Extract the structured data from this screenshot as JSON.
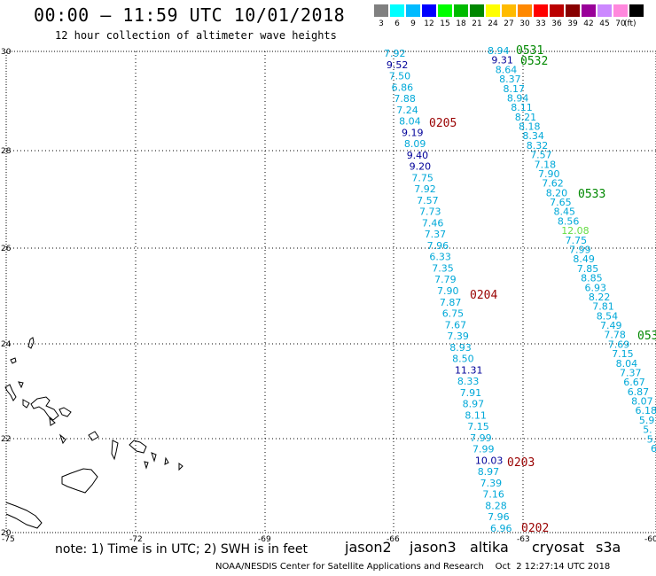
{
  "header": {
    "title": "00:00 – 11:59 UTC 10/01/2018",
    "subtitle": "12 hour collection of altimeter wave heights"
  },
  "legend": {
    "unit": "(ft)",
    "items": [
      {
        "label": "3",
        "color": "#808080"
      },
      {
        "label": "6",
        "color": "#00ffff"
      },
      {
        "label": "9",
        "color": "#00bbff"
      },
      {
        "label": "12",
        "color": "#0000ff"
      },
      {
        "label": "15",
        "color": "#00ff00"
      },
      {
        "label": "18",
        "color": "#00bb00"
      },
      {
        "label": "21",
        "color": "#008800"
      },
      {
        "label": "24",
        "color": "#ffff00"
      },
      {
        "label": "27",
        "color": "#ffbb00"
      },
      {
        "label": "30",
        "color": "#ff8800"
      },
      {
        "label": "33",
        "color": "#ff0000"
      },
      {
        "label": "36",
        "color": "#bb0000"
      },
      {
        "label": "39",
        "color": "#880000"
      },
      {
        "label": "42",
        "color": "#990099"
      },
      {
        "label": "45",
        "color": "#cc88ff"
      },
      {
        "label": "70",
        "color": "#ff88dd"
      },
      {
        "label": "",
        "color": "#000000"
      }
    ]
  },
  "axes": {
    "lon_ticks": [
      "-75",
      "-72",
      "-69",
      "-66",
      "-63",
      "-60"
    ],
    "lat_ticks": [
      "30",
      "28",
      "26",
      "24",
      "22",
      "20"
    ]
  },
  "colors": {
    "cyan": "#00a8d8",
    "navy": "#000099",
    "green": "#008800",
    "red": "#990000",
    "lightgreen": "#66dd44"
  },
  "track_labels": {
    "t0531": "0531",
    "t0532": "0532",
    "t0533": "0533",
    "t053_partial": "053",
    "t0205": "0205",
    "t0204": "0204",
    "t0203": "0203",
    "t0202": "0202"
  },
  "track_a": [
    {
      "v": "7.92",
      "c": "cyan"
    },
    {
      "v": "9.52",
      "c": "navy"
    },
    {
      "v": "7.50",
      "c": "cyan"
    },
    {
      "v": "6.86",
      "c": "cyan"
    },
    {
      "v": "7.88",
      "c": "cyan"
    },
    {
      "v": "7.24",
      "c": "cyan"
    },
    {
      "v": "8.04",
      "c": "cyan"
    },
    {
      "v": "9.19",
      "c": "navy"
    },
    {
      "v": "8.09",
      "c": "cyan"
    },
    {
      "v": "9.40",
      "c": "navy"
    },
    {
      "v": "9.20",
      "c": "navy"
    },
    {
      "v": "7.75",
      "c": "cyan"
    },
    {
      "v": "7.92",
      "c": "cyan"
    },
    {
      "v": "7.57",
      "c": "cyan"
    },
    {
      "v": "7.73",
      "c": "cyan"
    },
    {
      "v": "7.46",
      "c": "cyan"
    },
    {
      "v": "7.37",
      "c": "cyan"
    },
    {
      "v": "7.96",
      "c": "cyan"
    },
    {
      "v": "6.33",
      "c": "cyan"
    },
    {
      "v": "7.35",
      "c": "cyan"
    },
    {
      "v": "7.79",
      "c": "cyan"
    },
    {
      "v": "7.90",
      "c": "cyan"
    },
    {
      "v": "7.87",
      "c": "cyan"
    },
    {
      "v": "6.75",
      "c": "cyan"
    },
    {
      "v": "7.67",
      "c": "cyan"
    },
    {
      "v": "7.39",
      "c": "cyan"
    },
    {
      "v": "8.93",
      "c": "cyan"
    },
    {
      "v": "8.50",
      "c": "cyan"
    },
    {
      "v": "11.31",
      "c": "navy"
    },
    {
      "v": "8.33",
      "c": "cyan"
    },
    {
      "v": "7.91",
      "c": "cyan"
    },
    {
      "v": "8.97",
      "c": "cyan"
    },
    {
      "v": "8.11",
      "c": "cyan"
    },
    {
      "v": "7.15",
      "c": "cyan"
    },
    {
      "v": "7.99",
      "c": "cyan"
    },
    {
      "v": "7.99",
      "c": "cyan"
    },
    {
      "v": "10.03",
      "c": "navy"
    },
    {
      "v": "8.97",
      "c": "cyan"
    },
    {
      "v": "7.39",
      "c": "cyan"
    },
    {
      "v": "7.16",
      "c": "cyan"
    },
    {
      "v": "8.28",
      "c": "cyan"
    },
    {
      "v": "7.96",
      "c": "cyan"
    },
    {
      "v": "6.96",
      "c": "cyan"
    }
  ],
  "track_b": [
    {
      "v": "8.94",
      "c": "cyan"
    },
    {
      "v": "9.31",
      "c": "navy"
    },
    {
      "v": "8.64",
      "c": "cyan"
    },
    {
      "v": "8.37",
      "c": "cyan"
    },
    {
      "v": "8.17",
      "c": "cyan"
    },
    {
      "v": "8.94",
      "c": "cyan"
    },
    {
      "v": "8.11",
      "c": "cyan"
    },
    {
      "v": "8.21",
      "c": "cyan"
    },
    {
      "v": "8.18",
      "c": "cyan"
    },
    {
      "v": "8.34",
      "c": "cyan"
    },
    {
      "v": "8.32",
      "c": "cyan"
    },
    {
      "v": "7.57",
      "c": "cyan"
    },
    {
      "v": "7.18",
      "c": "cyan"
    },
    {
      "v": "7.90",
      "c": "cyan"
    },
    {
      "v": "7.62",
      "c": "cyan"
    },
    {
      "v": "8.20",
      "c": "cyan"
    },
    {
      "v": "7.65",
      "c": "cyan"
    },
    {
      "v": "8.45",
      "c": "cyan"
    },
    {
      "v": "8.56",
      "c": "cyan"
    },
    {
      "v": "12.08",
      "c": "lightgreen"
    },
    {
      "v": "7.75",
      "c": "cyan"
    },
    {
      "v": "7.99",
      "c": "cyan"
    },
    {
      "v": "8.49",
      "c": "cyan"
    },
    {
      "v": "7.85",
      "c": "cyan"
    },
    {
      "v": "8.85",
      "c": "cyan"
    },
    {
      "v": "6.93",
      "c": "cyan"
    },
    {
      "v": "8.22",
      "c": "cyan"
    },
    {
      "v": "7.81",
      "c": "cyan"
    },
    {
      "v": "8.54",
      "c": "cyan"
    },
    {
      "v": "7.49",
      "c": "cyan"
    },
    {
      "v": "7.78",
      "c": "cyan"
    },
    {
      "v": "7.69",
      "c": "cyan"
    },
    {
      "v": "7.15",
      "c": "cyan"
    },
    {
      "v": "8.04",
      "c": "cyan"
    },
    {
      "v": "7.37",
      "c": "cyan"
    },
    {
      "v": "6.67",
      "c": "cyan"
    },
    {
      "v": "6.87",
      "c": "cyan"
    },
    {
      "v": "8.07",
      "c": "cyan"
    },
    {
      "v": "6.18",
      "c": "cyan"
    },
    {
      "v": "5.9",
      "c": "cyan"
    },
    {
      "v": "5.",
      "c": "cyan"
    },
    {
      "v": "5.",
      "c": "cyan"
    },
    {
      "v": "6",
      "c": "cyan"
    }
  ],
  "footer": {
    "note": "note: 1) Time is in UTC; 2) SWH is in feet",
    "satellites": [
      {
        "name": "jason2",
        "color": "#0000cc"
      },
      {
        "name": "jason3",
        "color": "#008800"
      },
      {
        "name": "altika",
        "color": "#ff8800"
      },
      {
        "name": "cryosat",
        "color": "#cc0000"
      },
      {
        "name": "s3a",
        "color": "#990000"
      }
    ],
    "credit": "NOAA/NESDIS Center for Satellite Applications and Research    Oct  2 12:27:14 UTC 2018"
  }
}
